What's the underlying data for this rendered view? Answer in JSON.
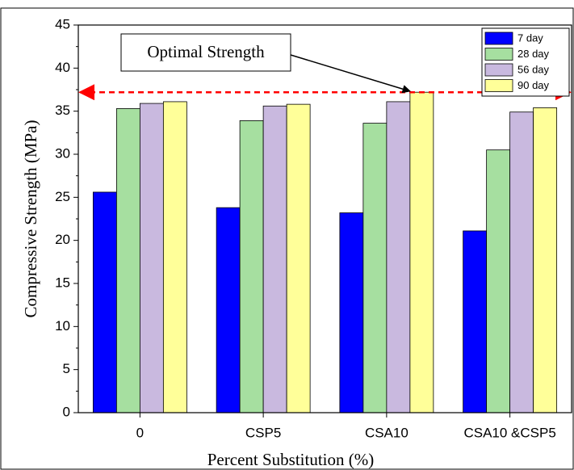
{
  "chart_data": {
    "type": "bar",
    "x_label": "Percent Substitution (%)",
    "y_label": "Compressive Strength (MPa)",
    "categories": [
      "0",
      "CSP5",
      "CSA10",
      "CSA10 &CSP5"
    ],
    "series": [
      {
        "name": "7 day",
        "color": "#0000ff",
        "values": [
          25.6,
          23.8,
          23.2,
          21.1
        ]
      },
      {
        "name": "28 day",
        "color": "#a6dfa0",
        "values": [
          35.3,
          33.9,
          33.6,
          30.5
        ]
      },
      {
        "name": "56 day",
        "color": "#c9b9df",
        "values": [
          35.9,
          35.6,
          36.1,
          34.9
        ]
      },
      {
        "name": "90 day",
        "color": "#ffff99",
        "values": [
          36.1,
          35.8,
          37.2,
          35.4
        ]
      }
    ],
    "ylim": [
      0,
      45
    ],
    "yticks": [
      0,
      5,
      10,
      15,
      20,
      25,
      30,
      35,
      40,
      45
    ],
    "reference_line": {
      "value": 37.2,
      "color": "#ff0000"
    },
    "annotation": "Optimal Strength",
    "legend": "top-right"
  }
}
